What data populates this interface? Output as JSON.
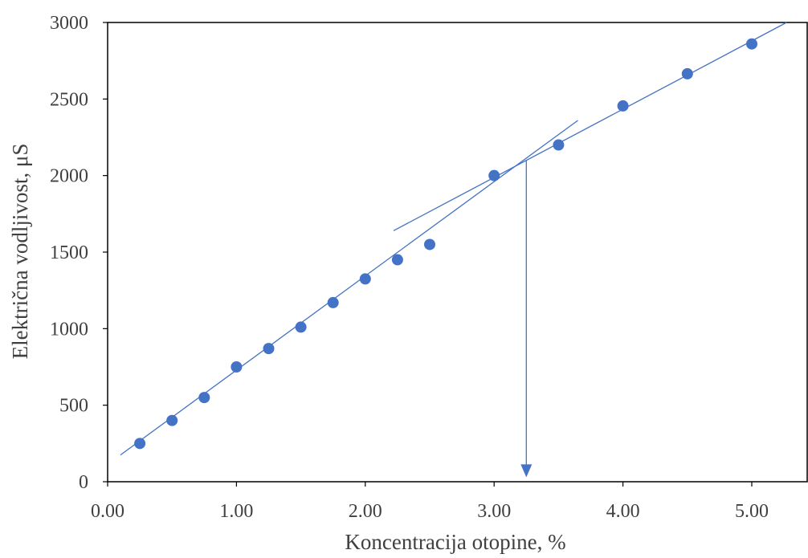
{
  "chart_data": {
    "type": "scatter",
    "xlabel": "Koncentracija otopine, %",
    "ylabel": "Električna vodljivost, μS",
    "xlim": [
      0,
      5.4
    ],
    "ylim": [
      0,
      3000
    ],
    "x_ticks": [
      0,
      1,
      2,
      3,
      4,
      5
    ],
    "x_tick_labels": [
      "0.00",
      "1.00",
      "2.00",
      "3.00",
      "4.00",
      "5.00"
    ],
    "y_ticks": [
      0,
      500,
      1000,
      1500,
      2000,
      2500,
      3000
    ],
    "y_tick_labels": [
      "0",
      "500",
      "1000",
      "1500",
      "2000",
      "2500",
      "3000"
    ],
    "grid": false,
    "legend": "none",
    "series": [
      {
        "x": [
          0.25,
          0.5,
          0.75,
          1.0,
          1.25,
          1.5,
          1.75,
          2.0,
          2.25,
          2.5,
          3.0,
          3.5,
          4.0,
          4.5,
          5.0
        ],
        "y": [
          250,
          400,
          550,
          750,
          870,
          1010,
          1170,
          1325,
          1450,
          1550,
          2000,
          2200,
          2455,
          2665,
          2860
        ],
        "color": "#4472C4"
      }
    ],
    "trendlines": [
      {
        "x": [
          0.1,
          3.65
        ],
        "y": [
          175,
          2360
        ],
        "color": "#4472C4"
      },
      {
        "x": [
          2.22,
          5.27
        ],
        "y": [
          1640,
          3000
        ],
        "color": "#4472C4"
      }
    ],
    "annotation_arrow": {
      "x": 3.25,
      "y_from": 2100,
      "y_to": 40,
      "color": "#4472C4"
    }
  }
}
